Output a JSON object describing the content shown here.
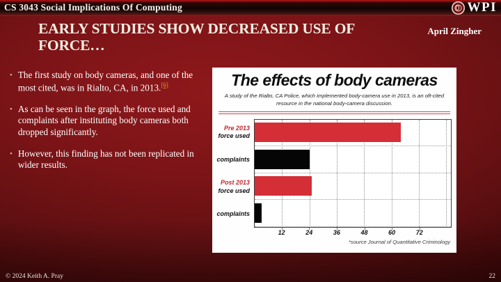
{
  "header": {
    "course": "CS 3043 Social Implications Of Computing",
    "logo_text": "WPI"
  },
  "slide": {
    "title_lines": [
      "EARLY STUDIES SHOW DECREASED USE OF",
      "FORCE…"
    ],
    "author": "April Zingher",
    "bullets": [
      {
        "text": "The first study on body cameras, and one of the most cited, was in Rialto, CA, in 2013.",
        "citation": "[6]"
      },
      {
        "text": "As can be seen in the graph, the force used and complaints after instituting body cameras both dropped significantly.",
        "citation": ""
      },
      {
        "text": "However, this finding has not been replicated in wider results.",
        "citation": ""
      }
    ]
  },
  "chart_data": {
    "type": "bar",
    "orientation": "horizontal",
    "title": "The effects of body cameras",
    "subtitle": "A study of the Rialto, CA Police, which implemented body-camera use in 2013, is an oft-cited resource in the national body-camera discussion.",
    "categories": [
      {
        "name": "Pre 2013 force used",
        "label_lines": [
          "Pre 2013",
          "force used"
        ],
        "label_colors": [
          "#c4262c",
          "#111111"
        ],
        "value": 64,
        "bar_color": "#d42e36"
      },
      {
        "name": "Pre 2013 complaints",
        "label_lines": [
          "complaints"
        ],
        "label_colors": [
          "#111111"
        ],
        "value": 24,
        "bar_color": "#050505"
      },
      {
        "name": "Post 2013 force used",
        "label_lines": [
          "Post 2013",
          "force used"
        ],
        "label_colors": [
          "#c4262c",
          "#111111"
        ],
        "value": 25,
        "bar_color": "#d42e36"
      },
      {
        "name": "Post 2013 complaints",
        "label_lines": [
          "complaints"
        ],
        "label_colors": [
          "#111111"
        ],
        "value": 3,
        "bar_color": "#050505"
      }
    ],
    "x_ticks": [
      12,
      24,
      36,
      48,
      60,
      72
    ],
    "grid_values": [
      12,
      24,
      36,
      48,
      60,
      72,
      84
    ],
    "xlim": [
      0,
      86
    ],
    "grid": "dotted",
    "legend": "none",
    "source": "*source Journal of Quantitative Criminology"
  },
  "footer": {
    "copyright": "© 2024 Keith A. Pray",
    "page_number": "22"
  },
  "colors": {
    "slide_background": "#7c1417",
    "header_dark": "#120404",
    "chart_red": "#d42e36",
    "chart_black": "#050505",
    "label_red": "#c4262c",
    "citation_orange": "#e2973b",
    "divider_red": "#cc4950"
  }
}
